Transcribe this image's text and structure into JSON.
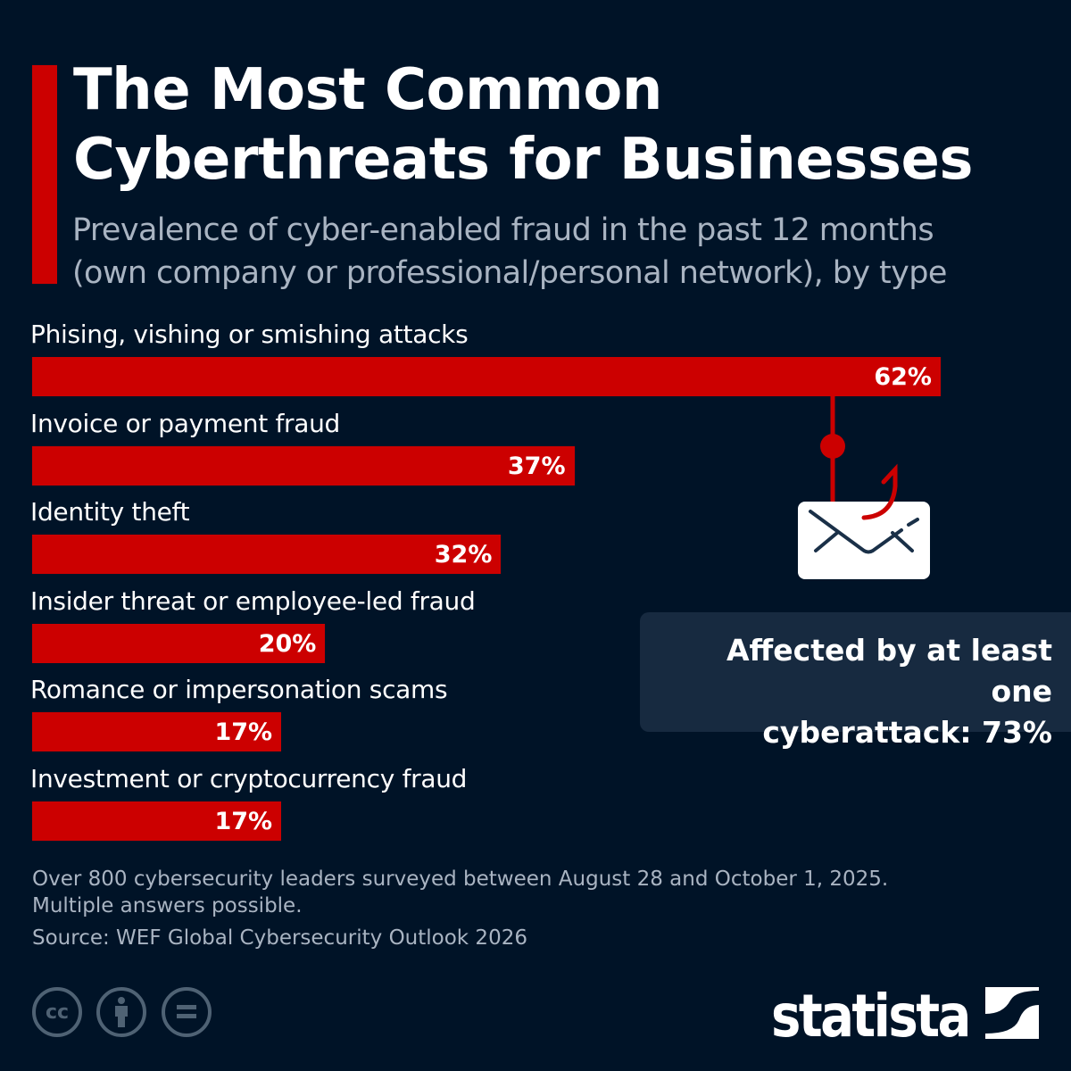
{
  "header": {
    "title_line1": "The Most Common",
    "title_line2": "Cyberthreats for Businesses",
    "subtitle_line1": "Prevalence of cyber-enabled fraud in the past 12 months",
    "subtitle_line2": "(own company or professional/personal network), by type"
  },
  "chart_data": {
    "type": "bar",
    "orientation": "horizontal",
    "categories": [
      "Phising, vishing or smishing attacks",
      "Invoice or payment fraud",
      "Identity theft",
      "Insider threat or employee-led fraud",
      "Romance or impersonation scams",
      "Investment or cryptocurrency fraud"
    ],
    "values": [
      62,
      37,
      32,
      20,
      17,
      17
    ],
    "value_labels": [
      "62%",
      "37%",
      "32%",
      "20%",
      "17%",
      "17%"
    ],
    "unit": "%",
    "bar_color": "#cc0000",
    "grid": false
  },
  "callout": {
    "line1": "Affected by at least one",
    "line2": "cyberattack: 73%"
  },
  "footer": {
    "note_line1": "Over 800 cybersecurity leaders surveyed between August 28 and October 1, 2025.",
    "note_line2": "Multiple answers possible.",
    "source": "Source: WEF Global Cybersecurity Outlook 2026",
    "license_icons": [
      "cc-icon",
      "attribution-icon",
      "no-derivatives-icon"
    ],
    "cc_text": "cc",
    "logo": "statista"
  },
  "colors": {
    "background": "#001327",
    "accent": "#cc0000",
    "callout_bg": "#172a40"
  }
}
